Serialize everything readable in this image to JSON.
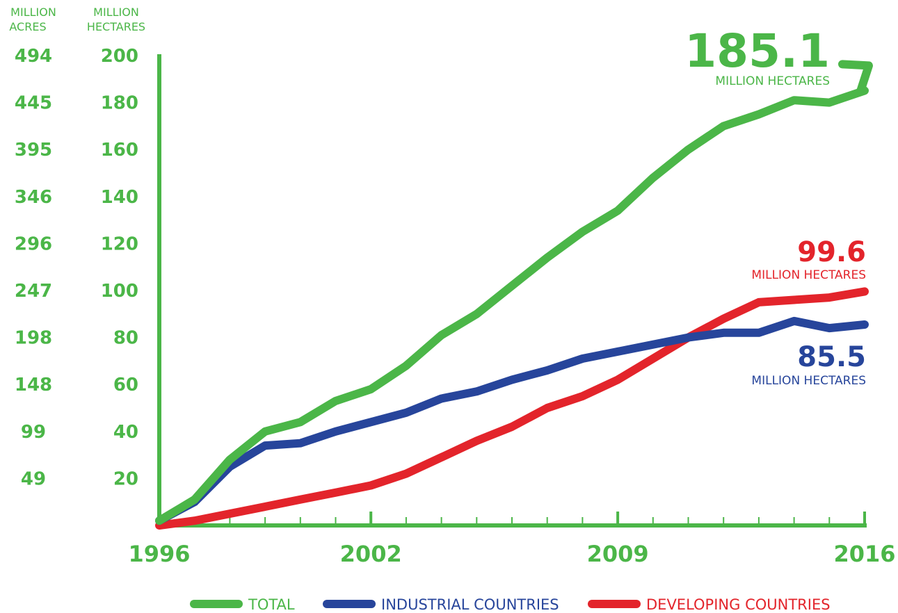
{
  "chart_data": {
    "type": "line",
    "x": [
      1996,
      1997,
      1998,
      1999,
      2000,
      2001,
      2002,
      2003,
      2004,
      2005,
      2006,
      2007,
      2008,
      2009,
      2010,
      2011,
      2012,
      2013,
      2014,
      2015,
      2016
    ],
    "xticks": [
      1996,
      2002,
      2009,
      2016
    ],
    "xtick_labels": [
      "1996",
      "2002",
      "2009",
      "2016"
    ],
    "ylim": [
      0,
      200
    ],
    "yticks": [
      20,
      40,
      60,
      80,
      100,
      120,
      140,
      160,
      180,
      200
    ],
    "ytick_labels": [
      "20",
      "40",
      "60",
      "80",
      "100",
      "120",
      "140",
      "160",
      "180",
      "200"
    ],
    "y2ticks": [
      "49",
      "99",
      "148",
      "198",
      "247",
      "296",
      "346",
      "395",
      "445",
      "494"
    ],
    "ylabel": "MILLION HECTARES",
    "y2label": "MILLION ACRES",
    "series": [
      {
        "name": "TOTAL",
        "color": "#4bb648",
        "values": [
          2,
          11,
          28,
          40,
          44,
          53,
          58,
          68,
          81,
          90,
          102,
          114,
          125,
          134,
          148,
          160,
          170,
          175,
          181,
          180,
          185.1
        ]
      },
      {
        "name": "INDUSTRIAL COUNTRIES",
        "color": "#27459b",
        "values": [
          2,
          10,
          25,
          34,
          35,
          40,
          44,
          48,
          54,
          57,
          62,
          66,
          71,
          74,
          77,
          80,
          82,
          82,
          87,
          84,
          85.5
        ]
      },
      {
        "name": "DEVELOPING COUNTRIES",
        "color": "#e3242b",
        "values": [
          0,
          2,
          5,
          8,
          11,
          14,
          17,
          22,
          29,
          36,
          42,
          50,
          55,
          62,
          71,
          80,
          88,
          95,
          96,
          97,
          99.6
        ]
      }
    ],
    "annotations": {
      "total_value": "185.1",
      "industrial_value": "85.5",
      "developing_value": "99.6",
      "unit": "MILLION HECTARES"
    },
    "legend_position": "bottom",
    "grid": false
  }
}
